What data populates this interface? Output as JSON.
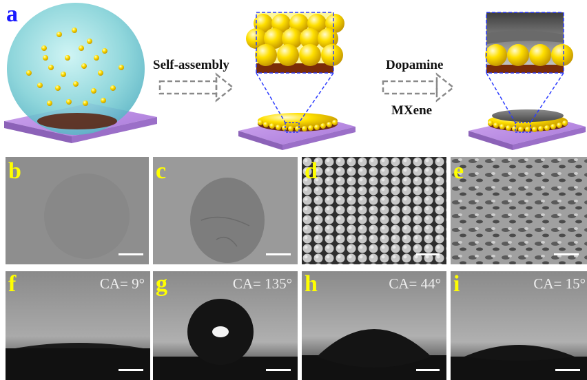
{
  "figure": {
    "panel_a": {
      "letter": "a",
      "step1_label": "Self-assembly",
      "step2_label_top": "Dopamine",
      "step2_label_bottom": "MXene"
    },
    "micrographs": [
      {
        "letter": "b",
        "kind": "blank-spot"
      },
      {
        "letter": "c",
        "kind": "coated-spot"
      },
      {
        "letter": "d",
        "kind": "particle-array"
      },
      {
        "letter": "e",
        "kind": "rough-surface"
      }
    ],
    "droplets": [
      {
        "letter": "f",
        "ca_text": "CA= 9°",
        "contact_angle_deg": 9
      },
      {
        "letter": "g",
        "ca_text": "CA= 135°",
        "contact_angle_deg": 135
      },
      {
        "letter": "h",
        "ca_text": "CA= 44°",
        "contact_angle_deg": 44
      },
      {
        "letter": "i",
        "ca_text": "CA= 15°",
        "contact_angle_deg": 15
      }
    ],
    "colors": {
      "panel_a_letter": "#1a1aff",
      "panel_letters": "#ffff00",
      "substrate": "#b48ae0",
      "particles": "#ffd800",
      "droplet": "#7fd8d8",
      "zoom_frame": "#2b3bff"
    }
  }
}
